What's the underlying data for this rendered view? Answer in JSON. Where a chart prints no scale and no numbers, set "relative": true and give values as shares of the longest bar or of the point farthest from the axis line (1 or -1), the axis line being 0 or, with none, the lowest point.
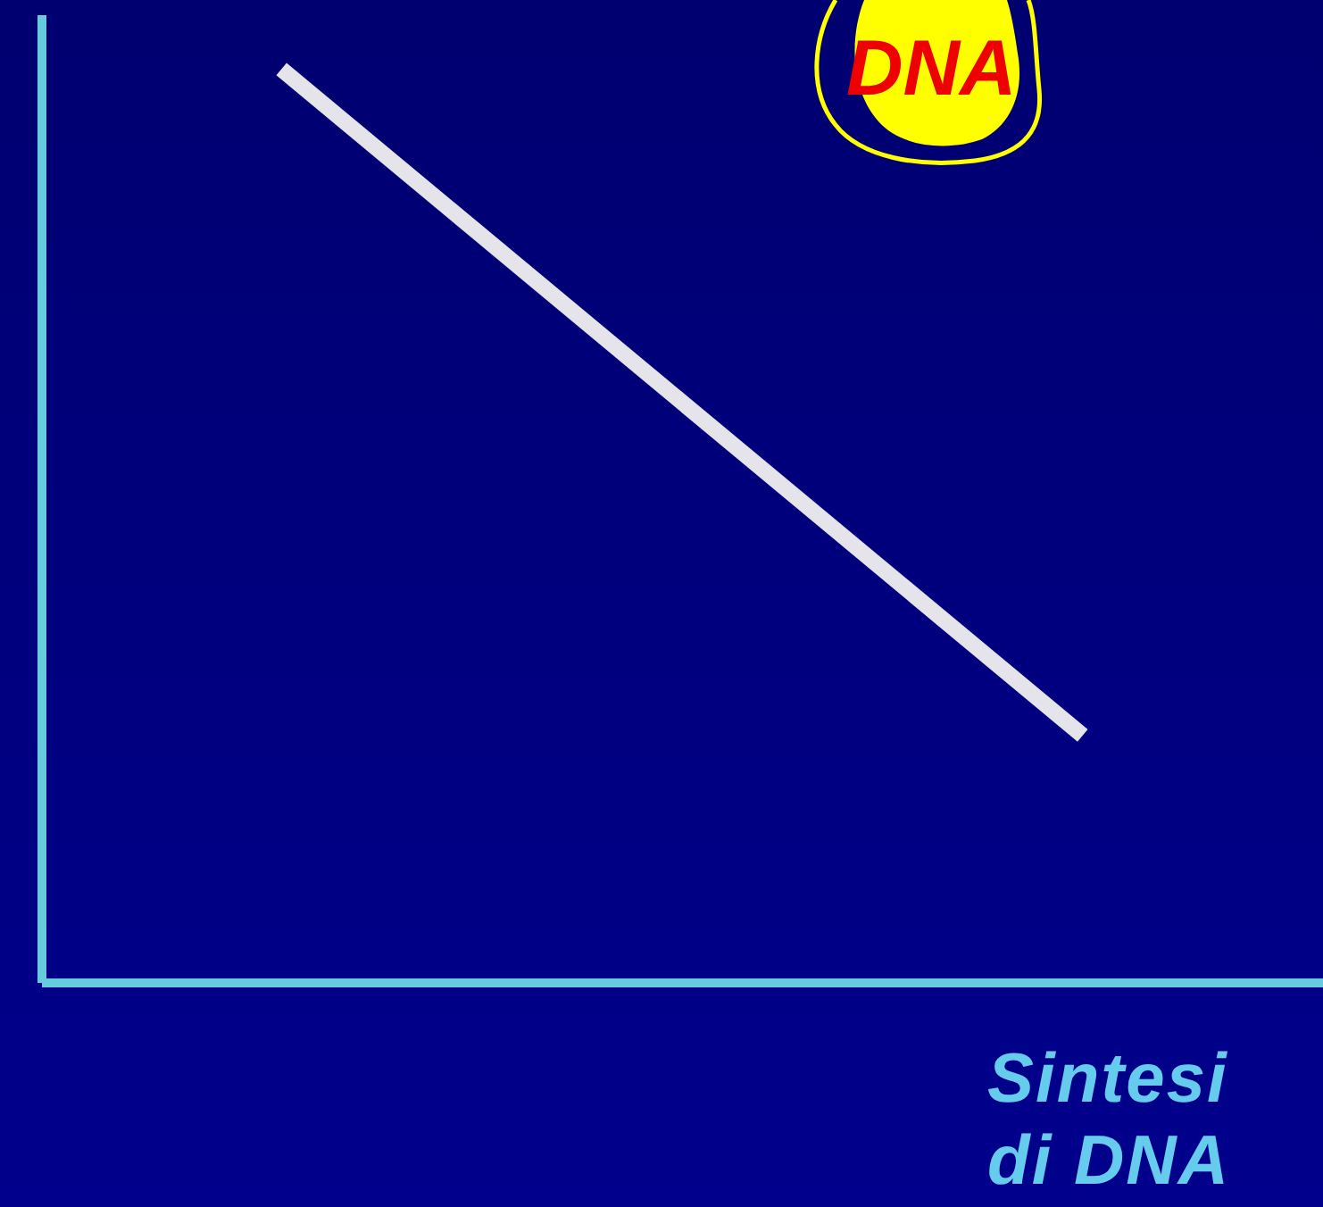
{
  "chart_data": {
    "type": "line",
    "relative": true,
    "categories": [
      null,
      null
    ],
    "series": [
      {
        "color": "#e4e4ea",
        "values": [
          1,
          0.27
        ]
      }
    ],
    "xlabel": "Sintesi di DNA",
    "annotations": [
      "DNA"
    ],
    "marker": "none",
    "line_style": "solid",
    "grid": false,
    "legend": false
  }
}
